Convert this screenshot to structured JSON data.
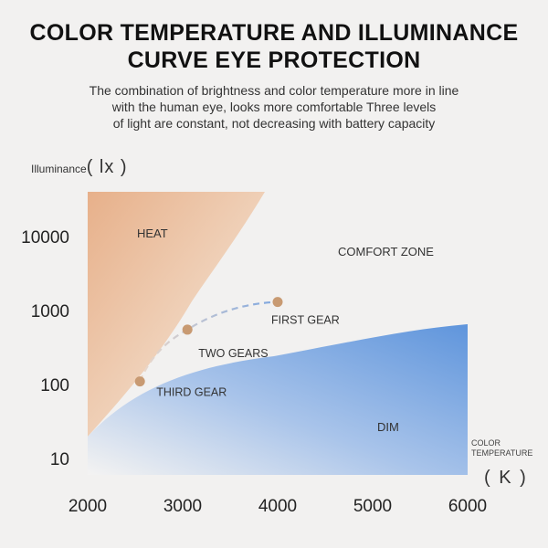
{
  "header": {
    "title_line1": "COLOR TEMPERATURE AND ILLUMINANCE",
    "title_line2": "CURVE EYE PROTECTION",
    "subtitle_lines": [
      "The combination of brightness and color temperature more in line",
      "with the human eye, looks more comfortable Three levels",
      "of light are constant, not decreasing with battery capacity"
    ]
  },
  "chart_data": {
    "type": "scatter",
    "y_axis_label": "Illuminance",
    "y_axis_unit": "( lx )",
    "x_axis_label": "COLOR TEMPERATURE",
    "x_axis_unit": "( K )",
    "y_scale": "log",
    "x_ticks": [
      2000,
      3000,
      4000,
      5000,
      6000
    ],
    "y_ticks": [
      10,
      100,
      1000,
      10000
    ],
    "xlim": [
      2000,
      6000
    ],
    "ylim": [
      6,
      40000
    ],
    "regions": [
      {
        "name": "HEAT",
        "color": "#e7b48c"
      },
      {
        "name": "COMFORT ZONE",
        "color": "#f2f1f0"
      },
      {
        "name": "DIM",
        "color": "#5f95dc"
      }
    ],
    "points": [
      {
        "label": "THIRD GEAR",
        "x": 2550,
        "y": 110
      },
      {
        "label": "TWO GEARS",
        "x": 3050,
        "y": 550
      },
      {
        "label": "FIRST GEAR",
        "x": 4000,
        "y": 1300
      }
    ],
    "point_color": "#c89a72",
    "curve_colors": [
      "#edd9c9",
      "#7da6e0"
    ]
  }
}
